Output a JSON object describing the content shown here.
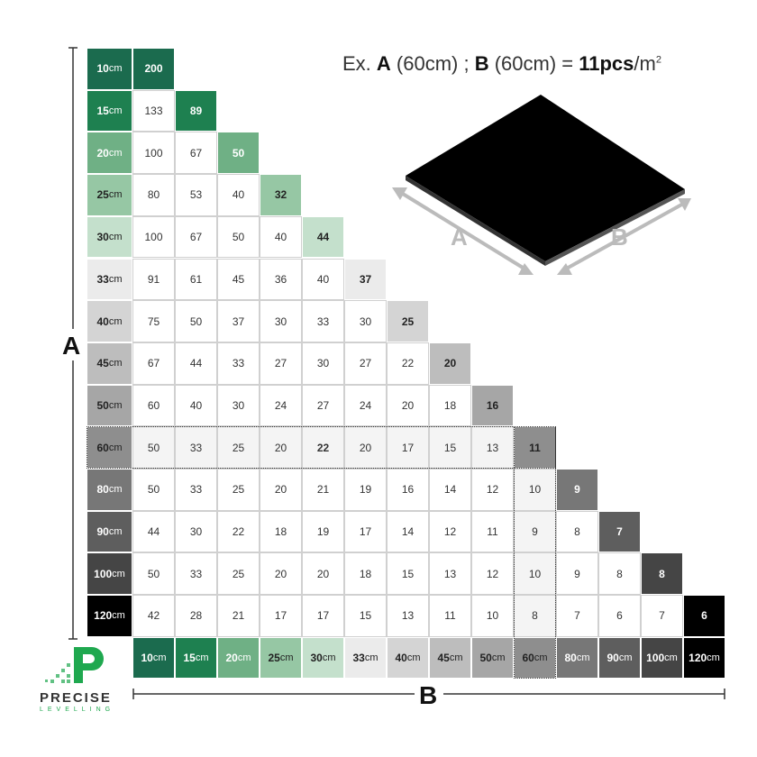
{
  "title": {
    "prefix": "Ex. ",
    "a": "A",
    "a_val": " (60cm) ; ",
    "b": "B",
    "b_val": " (60cm) = ",
    "result": "11pcs",
    "unit": "/m",
    "sup": "2"
  },
  "axis_a_label": "A",
  "axis_b_label": "B",
  "unit": "cm",
  "sizes": [
    "10",
    "15",
    "20",
    "25",
    "30",
    "33",
    "40",
    "45",
    "50",
    "60",
    "80",
    "90",
    "100",
    "120"
  ],
  "size_colors": [
    "#1b6b4e",
    "#1e8050",
    "#6fb085",
    "#96c7a4",
    "#c4e0cc",
    "#ebebeb",
    "#d4d4d4",
    "#bdbdbd",
    "#a6a6a6",
    "#8e8e8e",
    "#777777",
    "#5e5e5e",
    "#454545",
    "#000000"
  ],
  "size_text_colors": [
    "#fff",
    "#fff",
    "#fff",
    "#222",
    "#222",
    "#222",
    "#222",
    "#222",
    "#222",
    "#222",
    "#fff",
    "#fff",
    "#fff",
    "#fff"
  ],
  "highlight_size": "60",
  "table": [
    [
      200
    ],
    [
      133,
      89
    ],
    [
      100,
      67,
      50
    ],
    [
      80,
      53,
      40,
      32
    ],
    [
      100,
      67,
      50,
      40,
      44
    ],
    [
      91,
      61,
      45,
      36,
      40,
      37
    ],
    [
      75,
      50,
      37,
      30,
      33,
      30,
      25
    ],
    [
      67,
      44,
      33,
      27,
      30,
      27,
      22,
      20
    ],
    [
      60,
      40,
      30,
      24,
      27,
      24,
      20,
      18,
      16
    ],
    [
      50,
      33,
      25,
      20,
      22,
      20,
      17,
      15,
      13,
      11
    ],
    [
      50,
      33,
      25,
      20,
      21,
      19,
      16,
      14,
      12,
      10,
      9
    ],
    [
      44,
      30,
      22,
      18,
      19,
      17,
      14,
      12,
      11,
      9,
      8,
      7
    ],
    [
      50,
      33,
      25,
      20,
      20,
      18,
      15,
      13,
      12,
      10,
      9,
      8,
      8
    ],
    [
      42,
      28,
      21,
      17,
      17,
      15,
      13,
      11,
      10,
      8,
      7,
      6,
      7,
      6
    ]
  ],
  "illustration": {
    "a": "A",
    "b": "B"
  },
  "logo": {
    "name": "PRECISE",
    "sub": "LEVELLING",
    "brand_color": "#1fa84f"
  }
}
